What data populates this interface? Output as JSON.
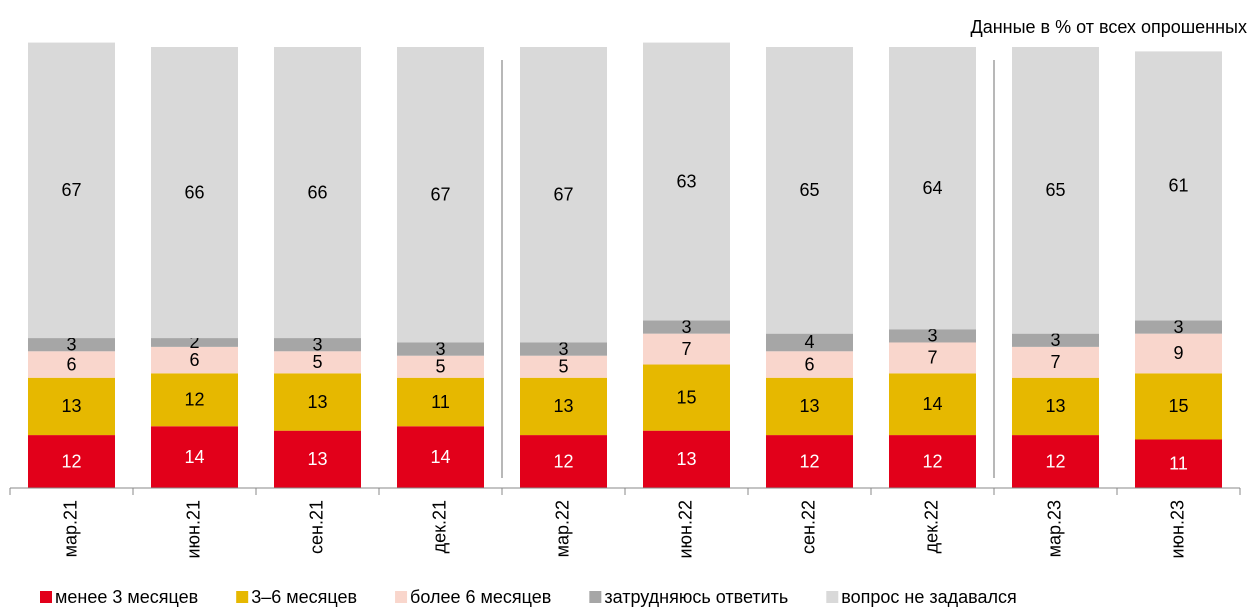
{
  "chart_data": {
    "type": "stacked_bar",
    "subtitle": "Данные в % от всех опрошенных",
    "categories": [
      "мар.21",
      "июн.21",
      "сен.21",
      "дек.21",
      "мар.22",
      "июн.22",
      "сен.22",
      "дек.22",
      "мар.23",
      "июн.23"
    ],
    "series": [
      {
        "name": "менее 3 месяцев",
        "color": "#e2001a",
        "values": [
          12,
          14,
          13,
          14,
          12,
          13,
          12,
          12,
          12,
          11
        ]
      },
      {
        "name": "3–6 месяцев",
        "color": "#e6b800",
        "values": [
          13,
          12,
          13,
          11,
          13,
          15,
          13,
          14,
          13,
          15
        ]
      },
      {
        "name": "более 6 месяцев",
        "color": "#f9d6cc",
        "values": [
          6,
          6,
          5,
          5,
          5,
          7,
          6,
          7,
          7,
          9
        ]
      },
      {
        "name": "затрудняюсь ответить",
        "color": "#a6a6a6",
        "values": [
          3,
          2,
          3,
          3,
          3,
          3,
          4,
          3,
          3,
          3
        ]
      },
      {
        "name": "вопрос не задавался",
        "color": "#d9d9d9",
        "values": [
          67,
          66,
          66,
          67,
          67,
          63,
          65,
          64,
          65,
          61
        ]
      }
    ],
    "ylim": [
      0,
      100
    ],
    "legend": "bottom"
  }
}
